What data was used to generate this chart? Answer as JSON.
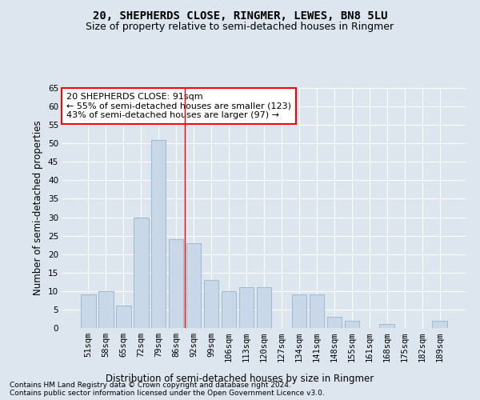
{
  "title": "20, SHEPHERDS CLOSE, RINGMER, LEWES, BN8 5LU",
  "subtitle": "Size of property relative to semi-detached houses in Ringmer",
  "xlabel": "Distribution of semi-detached houses by size in Ringmer",
  "ylabel": "Number of semi-detached properties",
  "categories": [
    "51sqm",
    "58sqm",
    "65sqm",
    "72sqm",
    "79sqm",
    "86sqm",
    "92sqm",
    "99sqm",
    "106sqm",
    "113sqm",
    "120sqm",
    "127sqm",
    "134sqm",
    "141sqm",
    "148sqm",
    "155sqm",
    "161sqm",
    "168sqm",
    "175sqm",
    "182sqm",
    "189sqm"
  ],
  "values": [
    9,
    10,
    6,
    30,
    51,
    24,
    23,
    13,
    10,
    11,
    11,
    0,
    9,
    9,
    3,
    2,
    0,
    1,
    0,
    0,
    2
  ],
  "bar_color": "#c8d8e8",
  "bar_edge_color": "#a0b8cc",
  "vline_x": 5.5,
  "annotation_text": "20 SHEPHERDS CLOSE: 91sqm\n← 55% of semi-detached houses are smaller (123)\n43% of semi-detached houses are larger (97) →",
  "annotation_box_color": "white",
  "annotation_box_edge_color": "red",
  "vline_color": "red",
  "ylim": [
    0,
    65
  ],
  "yticks": [
    0,
    5,
    10,
    15,
    20,
    25,
    30,
    35,
    40,
    45,
    50,
    55,
    60,
    65
  ],
  "footnote1": "Contains HM Land Registry data © Crown copyright and database right 2024.",
  "footnote2": "Contains public sector information licensed under the Open Government Licence v3.0.",
  "background_color": "#dde5ee",
  "plot_background": "#dde5ee",
  "title_fontsize": 10,
  "subtitle_fontsize": 9,
  "tick_fontsize": 7.5,
  "label_fontsize": 8.5,
  "annot_fontsize": 8
}
